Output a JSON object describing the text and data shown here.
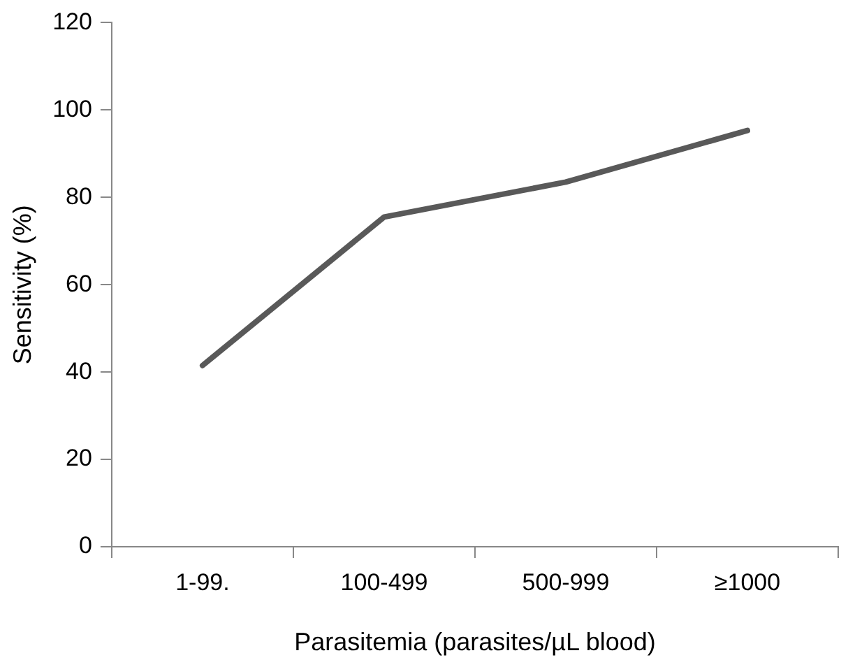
{
  "chart_data": {
    "type": "line",
    "xlabel": "Parasitemia (parasites/µL blood)",
    "ylabel": "Sensitivity (%)",
    "categories": [
      "1-99.",
      "100-499",
      "500-999",
      "≥1000"
    ],
    "series": [
      {
        "color": "#595959",
        "values": [
          41.5,
          75.5,
          83.5,
          95.3
        ]
      }
    ],
    "ylim": [
      0,
      120
    ],
    "yticks": [
      0,
      20,
      40,
      60,
      80,
      100,
      120
    ],
    "grid": false,
    "legend": false,
    "marker": "none",
    "line_style": "solid"
  }
}
